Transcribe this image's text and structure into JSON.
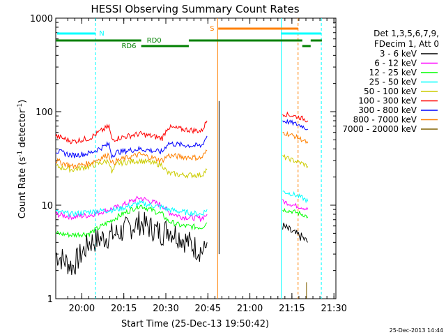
{
  "chart_data": {
    "type": "line",
    "title": "HESSI Observing Summary Count Rates",
    "xlabel": "Start Time (25-Dec-13 19:50:42)",
    "ylabel_main": "Count Rate (s",
    "ylabel_sup1": "-1",
    "ylabel_mid": " detector",
    "ylabel_sup2": "-1",
    "ylabel_end": ")",
    "ylog": true,
    "ylim": [
      1,
      1000
    ],
    "xlim_minutes": [
      0,
      100
    ],
    "x_ticks": [
      {
        "label": "20:00",
        "t": 9.3
      },
      {
        "label": "20:15",
        "t": 24.3
      },
      {
        "label": "20:30",
        "t": 39.3
      },
      {
        "label": "20:45",
        "t": 54.3
      },
      {
        "label": "21:00",
        "t": 69.3
      },
      {
        "label": "21:15",
        "t": 84.3
      },
      {
        "label": "21:30",
        "t": 99.3
      }
    ],
    "y_ticks": [
      {
        "label": "1",
        "v": 1
      },
      {
        "label": "10",
        "v": 10
      },
      {
        "label": "100",
        "v": 100
      },
      {
        "label": "1000",
        "v": 1000
      }
    ],
    "legend_header": [
      "Det 1,3,5,6,7,9,",
      "FDecim 1, Att 0"
    ],
    "timestamp": "25-Dec-2013 14:44",
    "flags": {
      "N": "N",
      "S": "S",
      "RD0": "RD0",
      "RD6": "RD6"
    },
    "series": [
      {
        "name": "3 - 6 keV",
        "color": "#000000",
        "points": [
          [
            0,
            3
          ],
          [
            6,
            2.2
          ],
          [
            12,
            4
          ],
          [
            22,
            5
          ],
          [
            30,
            6.5
          ],
          [
            38,
            5
          ],
          [
            40,
            5.6
          ],
          [
            45,
            4.5
          ],
          [
            50,
            3.5
          ],
          [
            53,
            3.2
          ],
          [
            54,
            4
          ]
        ],
        "points2": [
          [
            81,
            6
          ],
          [
            85,
            5
          ],
          [
            88,
            4.5
          ],
          [
            90,
            4
          ]
        ]
      },
      {
        "name": "6 - 12 keV",
        "color": "#ff00ff",
        "points": [
          [
            0,
            8
          ],
          [
            6,
            7.5
          ],
          [
            12,
            7.8
          ],
          [
            22,
            9.5
          ],
          [
            30,
            12
          ],
          [
            38,
            10
          ],
          [
            40,
            8.5
          ],
          [
            45,
            7.5
          ],
          [
            52,
            7.2
          ],
          [
            54,
            8
          ]
        ],
        "points2": [
          [
            81,
            11
          ],
          [
            85,
            10
          ],
          [
            88,
            9.5
          ],
          [
            90,
            9
          ]
        ]
      },
      {
        "name": "12 - 25 keV",
        "color": "#00ff00",
        "points": [
          [
            0,
            5
          ],
          [
            6,
            4.8
          ],
          [
            12,
            5
          ],
          [
            22,
            7.5
          ],
          [
            30,
            10
          ],
          [
            38,
            8
          ],
          [
            40,
            6.8
          ],
          [
            45,
            6
          ],
          [
            52,
            5.8
          ],
          [
            54,
            6.5
          ]
        ],
        "points2": [
          [
            81,
            9
          ],
          [
            85,
            8.5
          ],
          [
            88,
            8
          ],
          [
            90,
            7.5
          ]
        ]
      },
      {
        "name": "25 - 50 keV",
        "color": "#00ffff",
        "points": [
          [
            0,
            8.5
          ],
          [
            6,
            8
          ],
          [
            12,
            8.5
          ],
          [
            22,
            9
          ],
          [
            30,
            10.5
          ],
          [
            38,
            9.5
          ],
          [
            40,
            9
          ],
          [
            45,
            8.5
          ],
          [
            52,
            8
          ],
          [
            54,
            9
          ]
        ],
        "points2": [
          [
            81,
            14
          ],
          [
            85,
            13
          ],
          [
            88,
            12
          ],
          [
            90,
            11
          ]
        ]
      },
      {
        "name": "50 - 100 keV",
        "color": "#cccc00",
        "points": [
          [
            0,
            26
          ],
          [
            6,
            24
          ],
          [
            12,
            26
          ],
          [
            19,
            30
          ],
          [
            20,
            22
          ],
          [
            22,
            28
          ],
          [
            30,
            30
          ],
          [
            38,
            27
          ],
          [
            40,
            22
          ],
          [
            45,
            21
          ],
          [
            52,
            21
          ],
          [
            54,
            24
          ]
        ],
        "points2": [
          [
            81,
            33
          ],
          [
            85,
            30
          ],
          [
            88,
            28
          ],
          [
            90,
            26
          ]
        ]
      },
      {
        "name": "100 - 300 keV",
        "color": "#ff0000",
        "points": [
          [
            0,
            55
          ],
          [
            6,
            48
          ],
          [
            12,
            52
          ],
          [
            19,
            70
          ],
          [
            20,
            50
          ],
          [
            22,
            52
          ],
          [
            30,
            58
          ],
          [
            38,
            52
          ],
          [
            40,
            68
          ],
          [
            45,
            65
          ],
          [
            52,
            62
          ],
          [
            54,
            80
          ]
        ],
        "points2": [
          [
            81,
            95
          ],
          [
            85,
            90
          ],
          [
            88,
            85
          ],
          [
            90,
            80
          ]
        ]
      },
      {
        "name": "300 - 800 keV",
        "color": "#0000ff",
        "points": [
          [
            0,
            38
          ],
          [
            6,
            34
          ],
          [
            12,
            36
          ],
          [
            19,
            45
          ],
          [
            20,
            34
          ],
          [
            22,
            37
          ],
          [
            30,
            40
          ],
          [
            38,
            37
          ],
          [
            40,
            46
          ],
          [
            45,
            44
          ],
          [
            52,
            43
          ],
          [
            54,
            55
          ]
        ],
        "points2": [
          [
            81,
            80
          ],
          [
            85,
            75
          ],
          [
            88,
            70
          ],
          [
            90,
            65
          ]
        ]
      },
      {
        "name": "800 - 7000 keV",
        "color": "#ff8000",
        "points": [
          [
            0,
            30
          ],
          [
            6,
            26
          ],
          [
            12,
            28
          ],
          [
            19,
            35
          ],
          [
            20,
            28
          ],
          [
            22,
            30
          ],
          [
            30,
            35
          ],
          [
            38,
            30
          ],
          [
            40,
            34
          ],
          [
            45,
            33
          ],
          [
            52,
            32
          ],
          [
            54,
            38
          ]
        ],
        "points2": [
          [
            81,
            60
          ],
          [
            85,
            55
          ],
          [
            88,
            50
          ],
          [
            90,
            46
          ]
        ]
      },
      {
        "name": "7000 - 20000 keV",
        "color": "#806000",
        "points": [],
        "points2": []
      }
    ]
  }
}
